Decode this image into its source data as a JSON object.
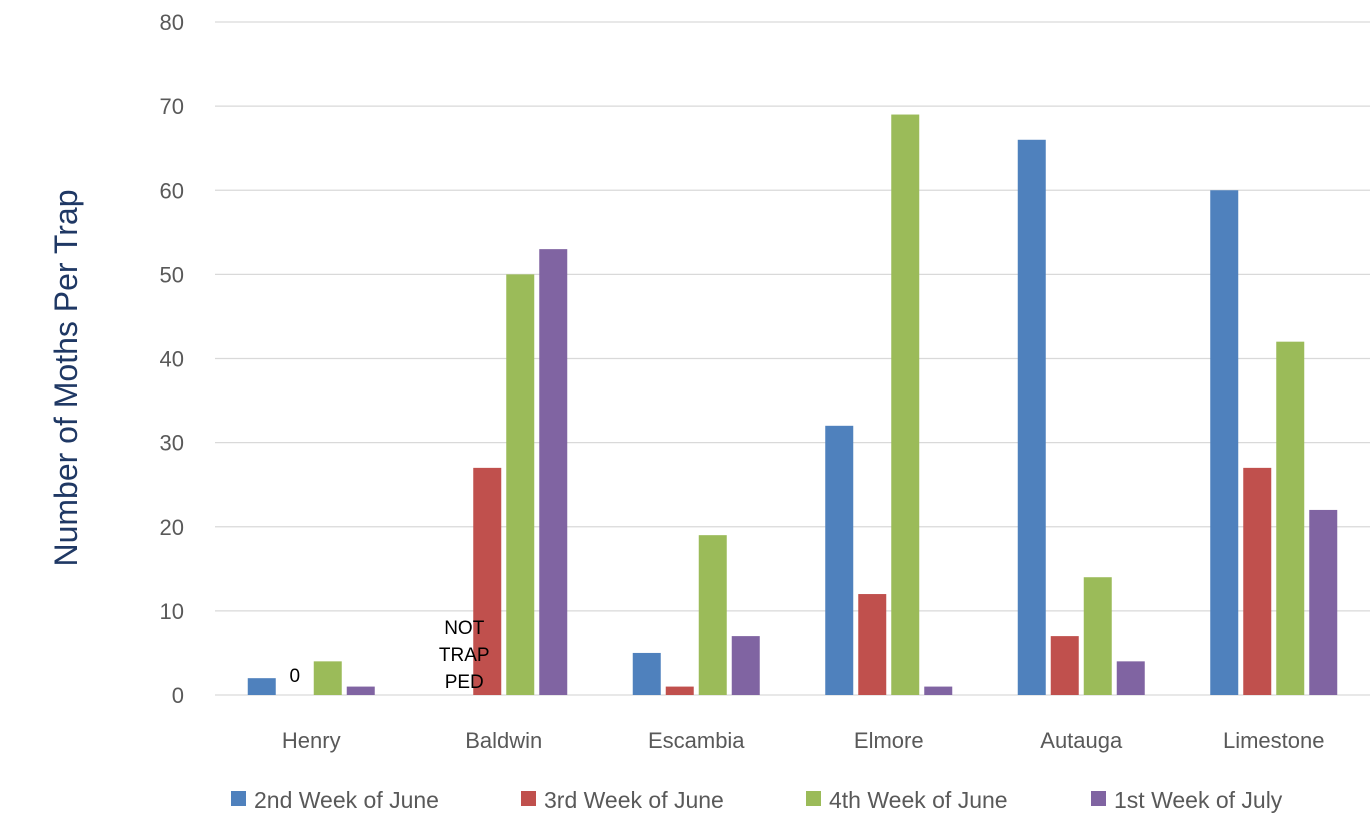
{
  "chart_data": {
    "type": "bar",
    "title": "",
    "xlabel": "",
    "ylabel": "Number of Moths Per Trap",
    "ylim": [
      0,
      80
    ],
    "yticks": [
      0,
      10,
      20,
      30,
      40,
      50,
      60,
      70,
      80
    ],
    "grid": true,
    "legend_position": "bottom",
    "categories": [
      "Henry",
      "Baldwin",
      "Escambia",
      "Elmore",
      "Autauga",
      "Limestone"
    ],
    "series": [
      {
        "name": "2nd Week of June",
        "color": "#4f81bd",
        "values": [
          2,
          0,
          5,
          32,
          66,
          60
        ]
      },
      {
        "name": "3rd Week of June",
        "color": "#c0504d",
        "values": [
          0,
          27,
          1,
          12,
          7,
          27
        ]
      },
      {
        "name": "4th Week of June",
        "color": "#9bbb59",
        "values": [
          4,
          50,
          19,
          69,
          14,
          42
        ]
      },
      {
        "name": "1st Week of July",
        "color": "#8064a2",
        "values": [
          1,
          53,
          7,
          1,
          4,
          22
        ]
      }
    ],
    "annotations": [
      {
        "category": "Henry",
        "series": "3rd Week of June",
        "text": "0"
      },
      {
        "category": "Baldwin",
        "series": "2nd Week of June",
        "lines": [
          "NOT",
          "TRAP",
          "PED"
        ]
      }
    ]
  }
}
